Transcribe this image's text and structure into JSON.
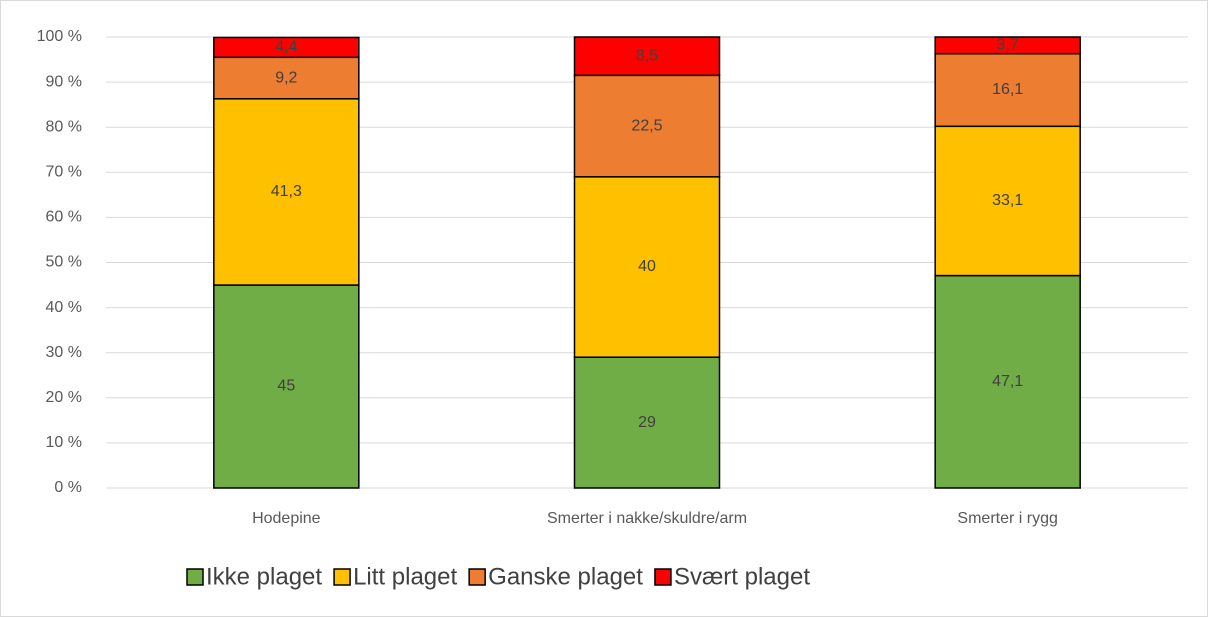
{
  "chart_data": {
    "type": "stacked_bar",
    "categories": [
      "Hodepine",
      "Smerter i nakke/skuldre/arm",
      "Smerter i rygg"
    ],
    "series": [
      {
        "name": "Ikke plaget",
        "color": "#70ad47",
        "values": [
          45,
          29,
          47.1
        ],
        "value_labels": [
          "45",
          "29",
          "47,1"
        ]
      },
      {
        "name": "Litt plaget",
        "color": "#ffc000",
        "values": [
          41.3,
          40,
          33.1
        ],
        "value_labels": [
          "41,3",
          "40",
          "33,1"
        ]
      },
      {
        "name": "Ganske plaget",
        "color": "#ed7d31",
        "values": [
          9.2,
          22.5,
          16.1
        ],
        "value_labels": [
          "9,2",
          "22,5",
          "16,1"
        ]
      },
      {
        "name": "Svært plaget",
        "color": "#ff0000",
        "values": [
          4.4,
          8.5,
          3.7
        ],
        "value_labels": [
          "4,4",
          "8,5",
          "3,7"
        ]
      }
    ],
    "ylim": [
      0,
      100
    ],
    "yticks": [
      {
        "value": 0,
        "label": "0 %"
      },
      {
        "value": 10,
        "label": "10 %"
      },
      {
        "value": 20,
        "label": "20 %"
      },
      {
        "value": 30,
        "label": "30 %"
      },
      {
        "value": 40,
        "label": "40 %"
      },
      {
        "value": 50,
        "label": "50 %"
      },
      {
        "value": 60,
        "label": "60 %"
      },
      {
        "value": 70,
        "label": "70 %"
      },
      {
        "value": 80,
        "label": "80 %"
      },
      {
        "value": 90,
        "label": "90 %"
      },
      {
        "value": 100,
        "label": "100 %"
      }
    ],
    "grid": true,
    "legend": "bottom"
  }
}
